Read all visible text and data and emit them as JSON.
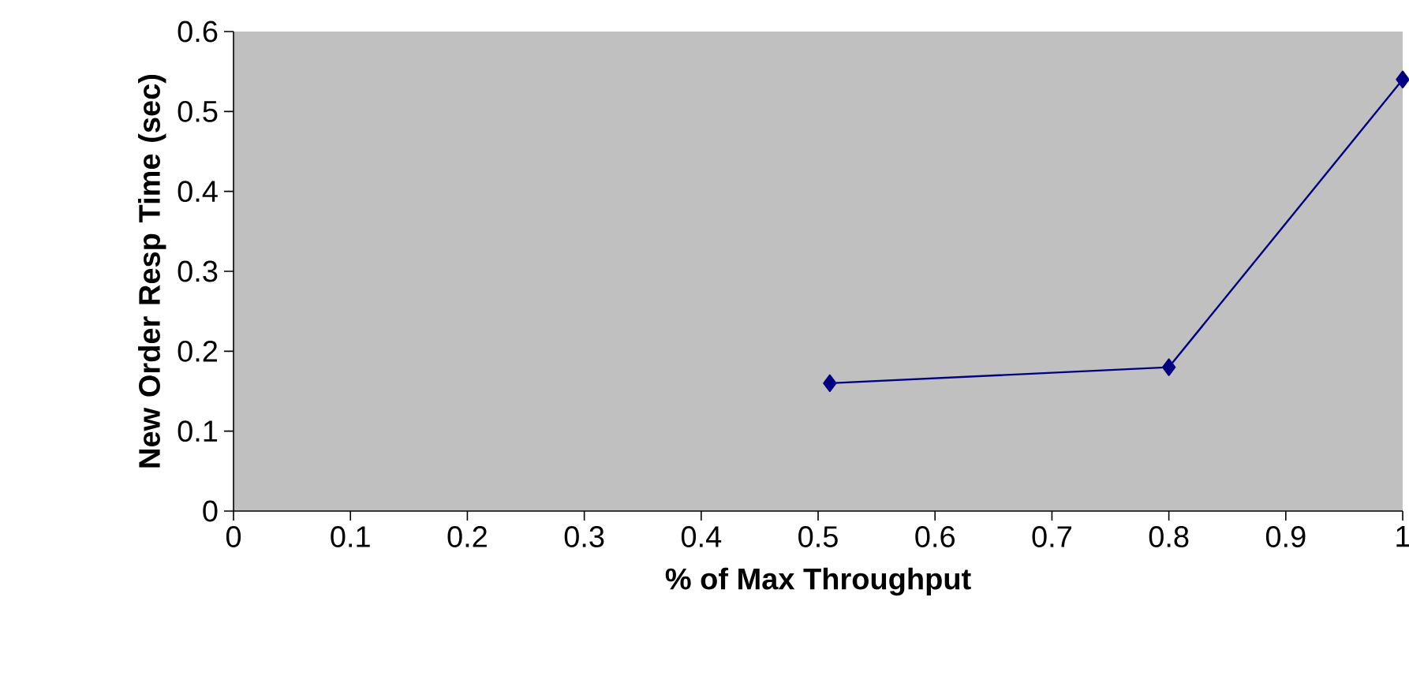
{
  "chart_data": {
    "type": "line",
    "xlabel": "% of Max Throughput",
    "ylabel": "New Order Resp Time (sec)",
    "x": [
      0.51,
      0.8,
      1.0
    ],
    "series": [
      {
        "color": "#000080",
        "values": [
          0.16,
          0.18,
          0.54
        ]
      }
    ],
    "xlim": [
      0,
      1
    ],
    "ylim": [
      0,
      0.6
    ],
    "xticks": [
      0,
      0.1,
      0.2,
      0.3,
      0.4,
      0.5,
      0.6,
      0.7,
      0.8,
      0.9,
      1
    ],
    "yticks": [
      0,
      0.1,
      0.2,
      0.3,
      0.4,
      0.5,
      0.6
    ],
    "grid": false,
    "legend": false,
    "marker": "diamond",
    "line_style": "solid"
  }
}
